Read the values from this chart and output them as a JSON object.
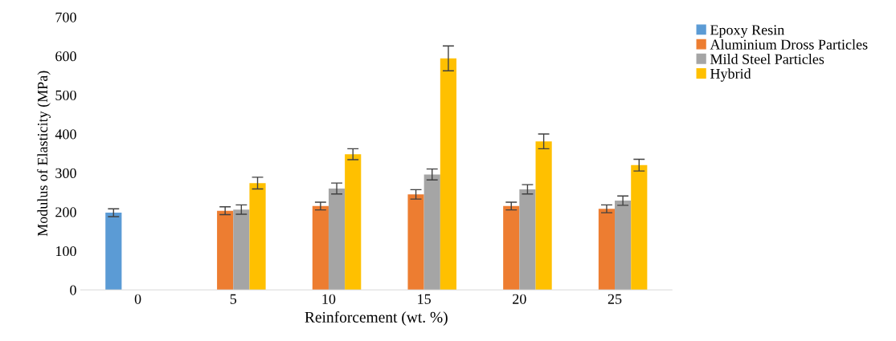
{
  "chart_data": {
    "type": "bar",
    "xlabel": "Reinforcement (wt. %)",
    "ylabel": "Modulus of Elasticity (MPa)",
    "categories": [
      "0",
      "5",
      "10",
      "15",
      "20",
      "25"
    ],
    "series": [
      {
        "name": "Epoxy Resin",
        "color": "#5b9bd5",
        "values": [
          198,
          null,
          null,
          null,
          null,
          null
        ],
        "errors": [
          10,
          null,
          null,
          null,
          null,
          null
        ]
      },
      {
        "name": "Aluminium Dross Particles",
        "color": "#ed7d31",
        "values": [
          null,
          203,
          215,
          245,
          215,
          208
        ],
        "errors": [
          null,
          10,
          10,
          12,
          10,
          10
        ]
      },
      {
        "name": "Mild Steel Particles",
        "color": "#a5a5a5",
        "values": [
          null,
          206,
          260,
          296,
          258,
          229
        ],
        "errors": [
          null,
          12,
          14,
          14,
          12,
          12
        ]
      },
      {
        "name": "Hybrid",
        "color": "#ffc000",
        "values": [
          null,
          274,
          348,
          594,
          381,
          320
        ],
        "errors": [
          null,
          15,
          14,
          32,
          19,
          15
        ]
      }
    ],
    "ylim": [
      0,
      700
    ],
    "yticks": [
      0,
      100,
      200,
      300,
      400,
      500,
      600,
      700
    ],
    "grid": false,
    "legend": "top right"
  }
}
